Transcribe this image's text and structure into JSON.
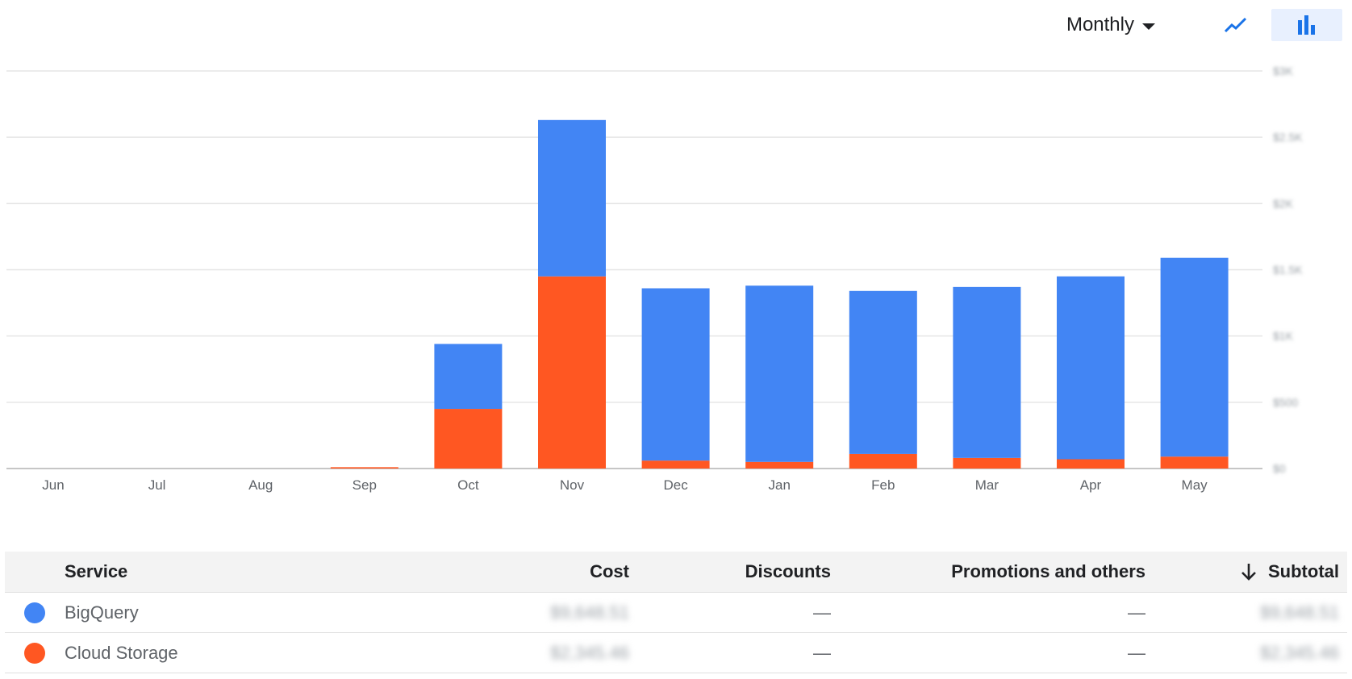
{
  "toolbar": {
    "period_label": "Monthly",
    "line_view_icon": "line-chart-icon",
    "bar_view_icon": "bar-chart-icon",
    "accent_color": "#1a73e8"
  },
  "chart_data": {
    "type": "bar",
    "stacked": true,
    "categories": [
      "Jun",
      "Jul",
      "Aug",
      "Sep",
      "Oct",
      "Nov",
      "Dec",
      "Jan",
      "Feb",
      "Mar",
      "Apr",
      "May"
    ],
    "series": [
      {
        "name": "Cloud Storage",
        "color": "#ff5722",
        "values": [
          0,
          0,
          0,
          0.01,
          0.45,
          1.45,
          0.06,
          0.05,
          0.11,
          0.08,
          0.07,
          0.09
        ]
      },
      {
        "name": "BigQuery",
        "color": "#4285f4",
        "values": [
          0,
          0,
          0,
          0,
          0.49,
          1.18,
          1.3,
          1.33,
          1.23,
          1.29,
          1.38,
          1.5
        ]
      }
    ],
    "ylim": [
      0,
      3
    ],
    "yticks": [
      "$0",
      "$500",
      "$1K",
      "$1.5K",
      "$2K",
      "$2.5K",
      "$3K"
    ],
    "grid": true,
    "legend": "table-below"
  },
  "table": {
    "headers": {
      "service": "Service",
      "cost": "Cost",
      "discounts": "Discounts",
      "promotions": "Promotions and others",
      "subtotal": "Subtotal"
    },
    "sort_icon": "arrow-down-icon",
    "rows": [
      {
        "service": "BigQuery",
        "color": "#4285f4",
        "cost": "$9,648.51",
        "discounts": "—",
        "promotions": "—",
        "subtotal": "$9,648.51"
      },
      {
        "service": "Cloud Storage",
        "color": "#ff5722",
        "cost": "$2,345.46",
        "discounts": "—",
        "promotions": "—",
        "subtotal": "$2,345.46"
      }
    ]
  }
}
